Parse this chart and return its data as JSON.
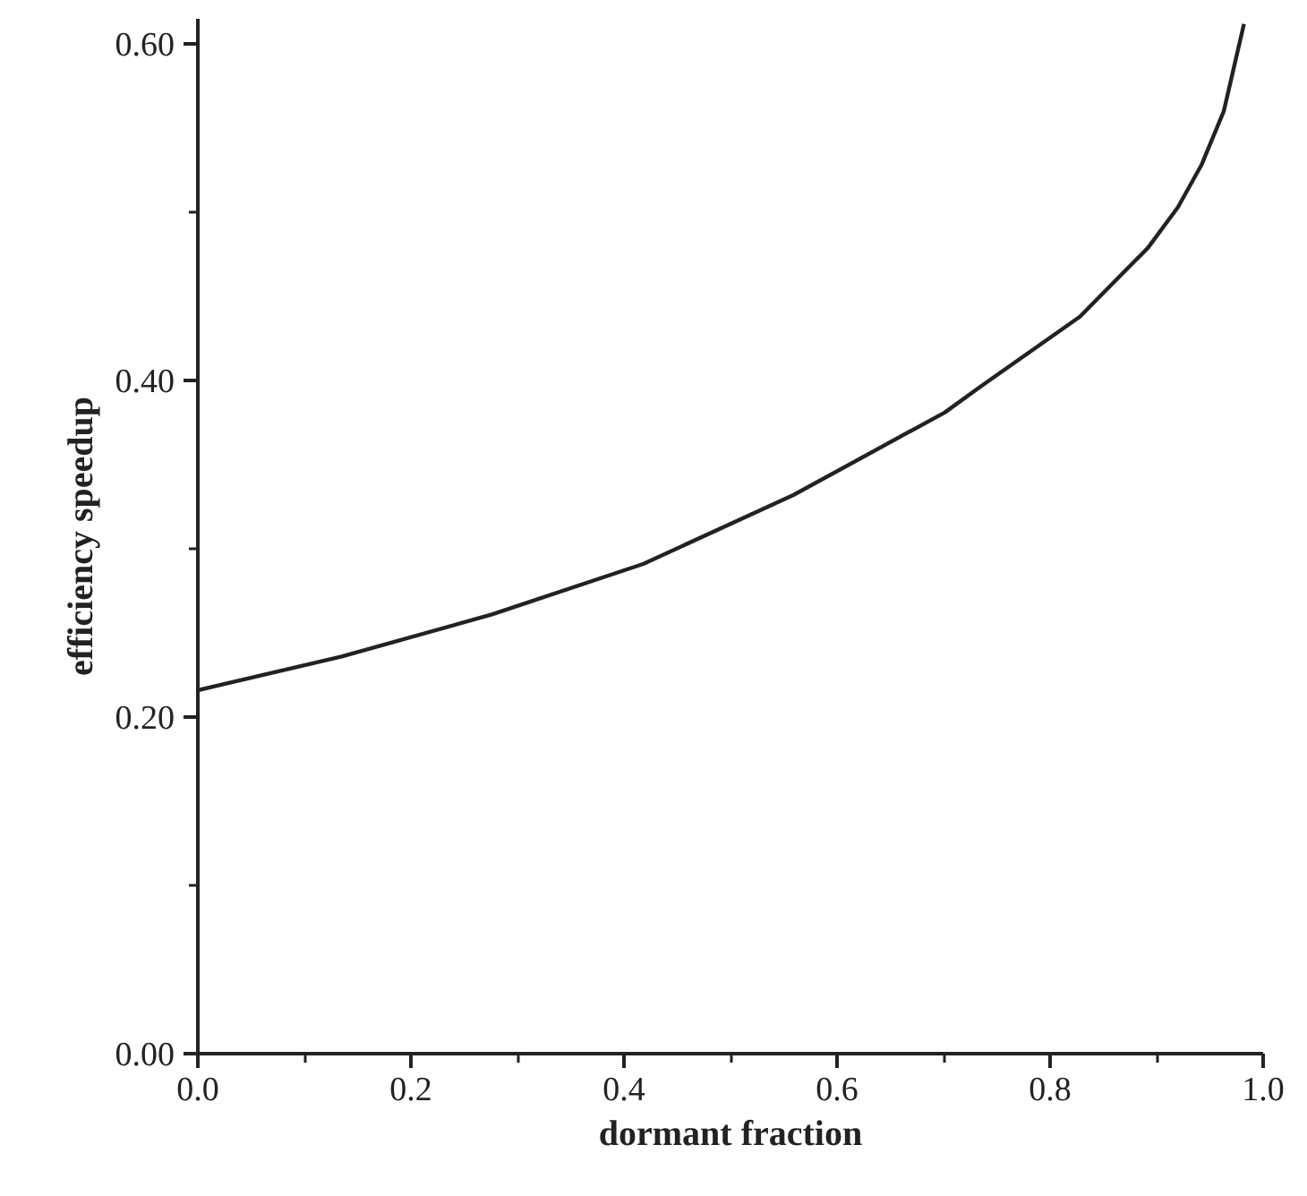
{
  "chart_data": {
    "type": "line",
    "xlabel": "dormant fraction",
    "ylabel": "efficiency speedup",
    "xlim": [
      0,
      1
    ],
    "ylim": [
      0,
      0.615
    ],
    "xticks": [
      {
        "value": 0,
        "label": "0.0"
      },
      {
        "value": 0.1,
        "label": null
      },
      {
        "value": 0.2,
        "label": "0.2"
      },
      {
        "value": 0.3,
        "label": null
      },
      {
        "value": 0.4,
        "label": "0.4"
      },
      {
        "value": 0.5,
        "label": null
      },
      {
        "value": 0.6,
        "label": "0.6"
      },
      {
        "value": 0.7,
        "label": null
      },
      {
        "value": 0.8,
        "label": "0.8"
      },
      {
        "value": 0.9,
        "label": null
      },
      {
        "value": 1,
        "label": "1.0"
      }
    ],
    "yticks": [
      {
        "value": 0,
        "label": "0.00"
      },
      {
        "value": 0.1,
        "label": null
      },
      {
        "value": 0.2,
        "label": "0.20"
      },
      {
        "value": 0.3,
        "label": null
      },
      {
        "value": 0.4,
        "label": "0.40"
      },
      {
        "value": 0.5,
        "label": null
      },
      {
        "value": 0.6,
        "label": "0.60"
      }
    ],
    "series": [
      {
        "color": "#222222",
        "x": [
          0,
          0.135,
          0.276,
          0.418,
          0.559,
          0.701,
          0.736,
          0.828,
          0.892,
          0.92,
          0.942,
          0.963,
          0.982
        ],
        "values": [
          0.216,
          0.236,
          0.261,
          0.291,
          0.332,
          0.381,
          0.397,
          0.438,
          0.479,
          0.503,
          0.528,
          0.56,
          0.612
        ]
      }
    ],
    "grid": false,
    "marker": "none",
    "line_style": "solid"
  }
}
